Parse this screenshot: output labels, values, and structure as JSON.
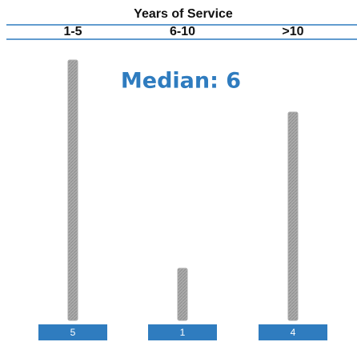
{
  "chart_data": {
    "type": "bar",
    "title": "Years of Service",
    "categories": [
      "1-5",
      "6-10",
      ">10"
    ],
    "values": [
      5,
      1,
      4
    ],
    "annotation": "Median: 6",
    "color": "#ababab",
    "label_color": "#2f7cbf"
  }
}
